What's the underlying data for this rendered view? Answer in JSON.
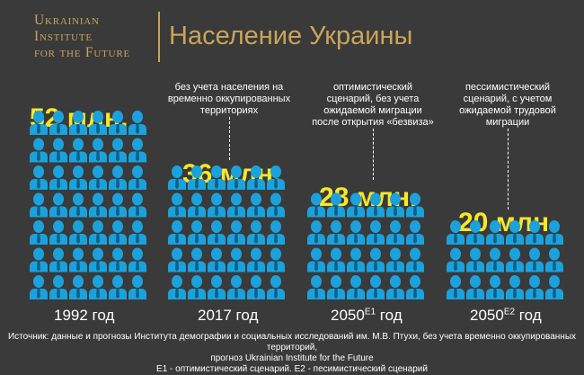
{
  "logo": {
    "line1": "Ukrainian",
    "line2": "Institute",
    "line3": "for the Future"
  },
  "title": "Население Украины",
  "colors": {
    "accent": "#c9a45a",
    "value": "#f6e72a",
    "person": "#1ba2dc",
    "background": "#3a3a3a"
  },
  "icon": "person-bust-icon",
  "groups": [
    {
      "year": "1992 год",
      "sup": "",
      "value_label": "52 млн.",
      "note": ""
    },
    {
      "year": "2017 год",
      "sup": "",
      "value_label": "36 млн.",
      "note": "без учета населения на\nвременно оккупированных\nтерриториях"
    },
    {
      "year": "2050",
      "sup": "E1",
      "year_suffix": " год",
      "value_label": "28 млн.",
      "note": "оптимистический\nсценарий, без учета\nожидаемой миграции\nпосле открытия «безвиза»"
    },
    {
      "year": "2050",
      "sup": "E2",
      "year_suffix": " год",
      "value_label": "20 млн.",
      "note": "пессимистический\nсценарий, с учетом\nожидаемой трудовой\nмиграции"
    }
  ],
  "chart_data": {
    "type": "bar",
    "title": "Население Украины",
    "categories": [
      "1992 год",
      "2017 год",
      "2050E1 год",
      "2050E2 год"
    ],
    "values": [
      52,
      36,
      28,
      20
    ],
    "value_labels": [
      "52 млн.",
      "36 млн.",
      "28 млн.",
      "20 млн."
    ],
    "unit": "млн.",
    "xlabel": "",
    "ylabel": ""
  },
  "footer": {
    "line1": "Источник:  данные и прогнозы  Института демографии и социальных исследований им. М.В. Птухи, без учета временно оккупированных территорий,",
    "line2": "прогноз Ukrainian Institute for the Future",
    "line3": "E1 - оптимистический сценарий. E2 - песимистический сценарий"
  }
}
